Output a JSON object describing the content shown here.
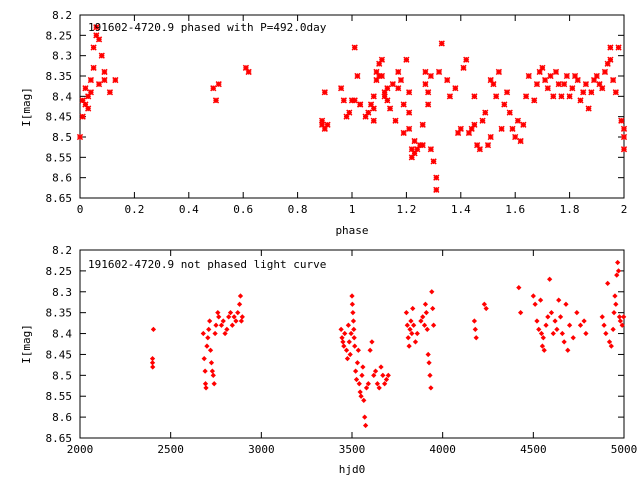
{
  "chart_data": [
    {
      "type": "scatter",
      "title": "191602-4720.9 phased with P=492.0day",
      "xlabel": "phase",
      "ylabel": "I[mag]",
      "xlim": [
        0,
        2
      ],
      "ylim": [
        8.2,
        8.65
      ],
      "y_inverted": true,
      "xticks": [
        "0",
        "0.2",
        "0.4",
        "0.6",
        "0.8",
        "1",
        "1.2",
        "1.4",
        "1.6",
        "1.8",
        "2"
      ],
      "yticks": [
        "8.2",
        "8.25",
        "8.3",
        "8.35",
        "8.4",
        "8.45",
        "8.5",
        "8.55",
        "8.6",
        "8.65"
      ],
      "marker": "x-plus",
      "color": "#ff0000",
      "points": [
        [
          0.0,
          8.5
        ],
        [
          0.01,
          8.41
        ],
        [
          0.01,
          8.45
        ],
        [
          0.02,
          8.38
        ],
        [
          0.02,
          8.42
        ],
        [
          0.03,
          8.4
        ],
        [
          0.03,
          8.43
        ],
        [
          0.04,
          8.36
        ],
        [
          0.04,
          8.39
        ],
        [
          0.05,
          8.33
        ],
        [
          0.05,
          8.28
        ],
        [
          0.06,
          8.25
        ],
        [
          0.06,
          8.23
        ],
        [
          0.07,
          8.26
        ],
        [
          0.07,
          8.37
        ],
        [
          0.08,
          8.3
        ],
        [
          0.09,
          8.34
        ],
        [
          0.09,
          8.36
        ],
        [
          0.11,
          8.39
        ],
        [
          0.13,
          8.36
        ],
        [
          0.49,
          8.38
        ],
        [
          0.5,
          8.41
        ],
        [
          0.51,
          8.37
        ],
        [
          0.61,
          8.33
        ],
        [
          0.62,
          8.34
        ],
        [
          0.89,
          8.46
        ],
        [
          0.89,
          8.47
        ],
        [
          0.9,
          8.48
        ],
        [
          0.9,
          8.39
        ],
        [
          0.91,
          8.47
        ],
        [
          0.96,
          8.38
        ],
        [
          0.97,
          8.41
        ],
        [
          0.98,
          8.45
        ],
        [
          0.99,
          8.44
        ],
        [
          1.0,
          8.41
        ],
        [
          1.01,
          8.28
        ],
        [
          1.01,
          8.41
        ],
        [
          1.02,
          8.35
        ],
        [
          1.03,
          8.42
        ],
        [
          1.03,
          8.42
        ],
        [
          1.05,
          8.45
        ],
        [
          1.06,
          8.44
        ],
        [
          1.07,
          8.42
        ],
        [
          1.08,
          8.4
        ],
        [
          1.08,
          8.43
        ],
        [
          1.08,
          8.46
        ],
        [
          1.09,
          8.34
        ],
        [
          1.09,
          8.36
        ],
        [
          1.1,
          8.32
        ],
        [
          1.1,
          8.35
        ],
        [
          1.11,
          8.31
        ],
        [
          1.11,
          8.35
        ],
        [
          1.12,
          8.39
        ],
        [
          1.12,
          8.4
        ],
        [
          1.13,
          8.38
        ],
        [
          1.13,
          8.41
        ],
        [
          1.14,
          8.43
        ],
        [
          1.15,
          8.37
        ],
        [
          1.16,
          8.46
        ],
        [
          1.17,
          8.34
        ],
        [
          1.17,
          8.38
        ],
        [
          1.18,
          8.36
        ],
        [
          1.19,
          8.42
        ],
        [
          1.19,
          8.49
        ],
        [
          1.2,
          8.31
        ],
        [
          1.21,
          8.44
        ],
        [
          1.21,
          8.39
        ],
        [
          1.21,
          8.48
        ],
        [
          1.22,
          8.53
        ],
        [
          1.22,
          8.55
        ],
        [
          1.23,
          8.51
        ],
        [
          1.23,
          8.54
        ],
        [
          1.24,
          8.53
        ],
        [
          1.25,
          8.52
        ],
        [
          1.26,
          8.47
        ],
        [
          1.26,
          8.52
        ],
        [
          1.27,
          8.34
        ],
        [
          1.27,
          8.37
        ],
        [
          1.28,
          8.39
        ],
        [
          1.28,
          8.42
        ],
        [
          1.29,
          8.35
        ],
        [
          1.29,
          8.53
        ],
        [
          1.3,
          8.56
        ],
        [
          1.31,
          8.6
        ],
        [
          1.31,
          8.63
        ],
        [
          1.32,
          8.34
        ],
        [
          1.33,
          8.27
        ],
        [
          1.35,
          8.36
        ],
        [
          1.36,
          8.4
        ],
        [
          1.38,
          8.38
        ],
        [
          1.39,
          8.49
        ],
        [
          1.4,
          8.48
        ],
        [
          1.41,
          8.33
        ],
        [
          1.42,
          8.31
        ],
        [
          1.43,
          8.49
        ],
        [
          1.44,
          8.48
        ],
        [
          1.45,
          8.4
        ],
        [
          1.45,
          8.47
        ],
        [
          1.46,
          8.52
        ],
        [
          1.47,
          8.53
        ],
        [
          1.48,
          8.46
        ],
        [
          1.49,
          8.44
        ],
        [
          1.5,
          8.52
        ],
        [
          1.51,
          8.5
        ],
        [
          1.51,
          8.36
        ],
        [
          1.52,
          8.37
        ],
        [
          1.53,
          8.4
        ],
        [
          1.54,
          8.34
        ],
        [
          1.55,
          8.48
        ],
        [
          1.56,
          8.42
        ],
        [
          1.57,
          8.39
        ],
        [
          1.58,
          8.44
        ],
        [
          1.59,
          8.48
        ],
        [
          1.6,
          8.5
        ],
        [
          1.61,
          8.46
        ],
        [
          1.62,
          8.51
        ],
        [
          1.63,
          8.47
        ],
        [
          1.64,
          8.4
        ],
        [
          1.65,
          8.35
        ],
        [
          1.67,
          8.41
        ],
        [
          1.68,
          8.37
        ],
        [
          1.69,
          8.34
        ],
        [
          1.7,
          8.33
        ],
        [
          1.71,
          8.36
        ],
        [
          1.72,
          8.38
        ],
        [
          1.73,
          8.35
        ],
        [
          1.74,
          8.4
        ],
        [
          1.75,
          8.34
        ],
        [
          1.76,
          8.37
        ],
        [
          1.77,
          8.4
        ],
        [
          1.78,
          8.37
        ],
        [
          1.79,
          8.35
        ],
        [
          1.8,
          8.4
        ],
        [
          1.81,
          8.38
        ],
        [
          1.82,
          8.35
        ],
        [
          1.83,
          8.36
        ],
        [
          1.84,
          8.41
        ],
        [
          1.85,
          8.39
        ],
        [
          1.86,
          8.37
        ],
        [
          1.87,
          8.43
        ],
        [
          1.88,
          8.39
        ],
        [
          1.89,
          8.36
        ],
        [
          1.9,
          8.35
        ],
        [
          1.91,
          8.37
        ],
        [
          1.92,
          8.38
        ],
        [
          1.93,
          8.34
        ],
        [
          1.94,
          8.32
        ],
        [
          1.95,
          8.31
        ],
        [
          1.95,
          8.28
        ],
        [
          1.96,
          8.36
        ],
        [
          1.97,
          8.39
        ],
        [
          1.98,
          8.28
        ],
        [
          1.99,
          8.46
        ],
        [
          2.0,
          8.48
        ],
        [
          2.0,
          8.5
        ],
        [
          2.0,
          8.53
        ]
      ]
    },
    {
      "type": "scatter",
      "title": "191602-4720.9 not phased light curve",
      "xlabel": "hjd0",
      "ylabel": "I[mag]",
      "xlim": [
        2000,
        5000
      ],
      "ylim": [
        8.2,
        8.65
      ],
      "y_inverted": true,
      "xticks": [
        "2000",
        "2500",
        "3000",
        "3500",
        "4000",
        "4500",
        "5000"
      ],
      "yticks": [
        "8.2",
        "8.25",
        "8.3",
        "8.35",
        "8.4",
        "8.45",
        "8.5",
        "8.55",
        "8.6",
        "8.65"
      ],
      "marker": "diamond",
      "color": "#ff0000",
      "points": [
        [
          2400,
          8.46
        ],
        [
          2400,
          8.47
        ],
        [
          2401,
          8.48
        ],
        [
          2405,
          8.39
        ],
        [
          2680,
          8.4
        ],
        [
          2685,
          8.46
        ],
        [
          2690,
          8.49
        ],
        [
          2692,
          8.52
        ],
        [
          2695,
          8.53
        ],
        [
          2700,
          8.43
        ],
        [
          2705,
          8.41
        ],
        [
          2710,
          8.39
        ],
        [
          2715,
          8.37
        ],
        [
          2720,
          8.44
        ],
        [
          2725,
          8.47
        ],
        [
          2730,
          8.49
        ],
        [
          2735,
          8.5
        ],
        [
          2740,
          8.52
        ],
        [
          2745,
          8.4
        ],
        [
          2750,
          8.38
        ],
        [
          2760,
          8.35
        ],
        [
          2765,
          8.36
        ],
        [
          2780,
          8.38
        ],
        [
          2790,
          8.37
        ],
        [
          2800,
          8.4
        ],
        [
          2810,
          8.39
        ],
        [
          2820,
          8.36
        ],
        [
          2830,
          8.35
        ],
        [
          2840,
          8.38
        ],
        [
          2850,
          8.36
        ],
        [
          2860,
          8.37
        ],
        [
          2870,
          8.35
        ],
        [
          2880,
          8.33
        ],
        [
          2885,
          8.31
        ],
        [
          2890,
          8.37
        ],
        [
          2895,
          8.36
        ],
        [
          3440,
          8.39
        ],
        [
          3445,
          8.41
        ],
        [
          3450,
          8.42
        ],
        [
          3455,
          8.43
        ],
        [
          3460,
          8.4
        ],
        [
          3470,
          8.44
        ],
        [
          3475,
          8.46
        ],
        [
          3480,
          8.38
        ],
        [
          3485,
          8.42
        ],
        [
          3490,
          8.45
        ],
        [
          3495,
          8.4
        ],
        [
          3500,
          8.31
        ],
        [
          3502,
          8.33
        ],
        [
          3505,
          8.35
        ],
        [
          3508,
          8.37
        ],
        [
          3510,
          8.39
        ],
        [
          3512,
          8.41
        ],
        [
          3515,
          8.43
        ],
        [
          3520,
          8.49
        ],
        [
          3525,
          8.51
        ],
        [
          3530,
          8.47
        ],
        [
          3535,
          8.44
        ],
        [
          3540,
          8.52
        ],
        [
          3545,
          8.54
        ],
        [
          3550,
          8.55
        ],
        [
          3555,
          8.5
        ],
        [
          3560,
          8.48
        ],
        [
          3565,
          8.56
        ],
        [
          3570,
          8.6
        ],
        [
          3575,
          8.62
        ],
        [
          3580,
          8.53
        ],
        [
          3590,
          8.52
        ],
        [
          3600,
          8.44
        ],
        [
          3610,
          8.42
        ],
        [
          3620,
          8.5
        ],
        [
          3630,
          8.49
        ],
        [
          3640,
          8.52
        ],
        [
          3650,
          8.53
        ],
        [
          3660,
          8.48
        ],
        [
          3670,
          8.5
        ],
        [
          3680,
          8.52
        ],
        [
          3690,
          8.51
        ],
        [
          3700,
          8.5
        ],
        [
          3800,
          8.35
        ],
        [
          3805,
          8.38
        ],
        [
          3810,
          8.41
        ],
        [
          3815,
          8.43
        ],
        [
          3820,
          8.39
        ],
        [
          3825,
          8.37
        ],
        [
          3830,
          8.4
        ],
        [
          3835,
          8.34
        ],
        [
          3840,
          8.38
        ],
        [
          3850,
          8.42
        ],
        [
          3860,
          8.4
        ],
        [
          3880,
          8.37
        ],
        [
          3890,
          8.36
        ],
        [
          3900,
          8.38
        ],
        [
          3905,
          8.33
        ],
        [
          3910,
          8.35
        ],
        [
          3915,
          8.39
        ],
        [
          3920,
          8.45
        ],
        [
          3925,
          8.47
        ],
        [
          3930,
          8.5
        ],
        [
          3935,
          8.53
        ],
        [
          3940,
          8.3
        ],
        [
          3945,
          8.34
        ],
        [
          3950,
          8.38
        ],
        [
          4175,
          8.37
        ],
        [
          4180,
          8.39
        ],
        [
          4185,
          8.41
        ],
        [
          4230,
          8.33
        ],
        [
          4240,
          8.34
        ],
        [
          4420,
          8.29
        ],
        [
          4430,
          8.35
        ],
        [
          4500,
          8.31
        ],
        [
          4510,
          8.33
        ],
        [
          4520,
          8.37
        ],
        [
          4530,
          8.39
        ],
        [
          4540,
          8.32
        ],
        [
          4545,
          8.4
        ],
        [
          4550,
          8.43
        ],
        [
          4555,
          8.41
        ],
        [
          4560,
          8.44
        ],
        [
          4570,
          8.38
        ],
        [
          4580,
          8.36
        ],
        [
          4590,
          8.27
        ],
        [
          4600,
          8.35
        ],
        [
          4610,
          8.4
        ],
        [
          4620,
          8.37
        ],
        [
          4630,
          8.39
        ],
        [
          4640,
          8.32
        ],
        [
          4650,
          8.36
        ],
        [
          4660,
          8.4
        ],
        [
          4670,
          8.42
        ],
        [
          4680,
          8.33
        ],
        [
          4690,
          8.44
        ],
        [
          4700,
          8.38
        ],
        [
          4720,
          8.41
        ],
        [
          4740,
          8.35
        ],
        [
          4760,
          8.38
        ],
        [
          4780,
          8.37
        ],
        [
          4790,
          8.4
        ],
        [
          4880,
          8.36
        ],
        [
          4890,
          8.38
        ],
        [
          4900,
          8.4
        ],
        [
          4910,
          8.28
        ],
        [
          4920,
          8.42
        ],
        [
          4930,
          8.43
        ],
        [
          4940,
          8.39
        ],
        [
          4945,
          8.35
        ],
        [
          4950,
          8.31
        ],
        [
          4955,
          8.33
        ],
        [
          4960,
          8.26
        ],
        [
          4965,
          8.23
        ],
        [
          4970,
          8.25
        ],
        [
          4975,
          8.36
        ],
        [
          4980,
          8.37
        ],
        [
          4990,
          8.38
        ],
        [
          4998,
          8.36
        ]
      ]
    }
  ]
}
